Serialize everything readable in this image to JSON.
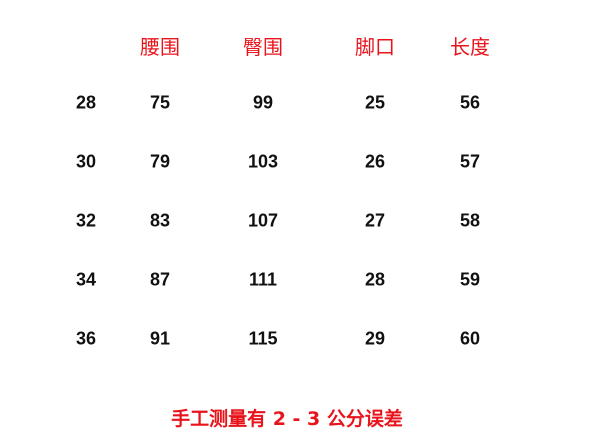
{
  "headers": [
    "",
    "腰围",
    "臀围",
    "脚口",
    "长度"
  ],
  "rows": [
    [
      "28",
      "75",
      "99",
      "25",
      "56"
    ],
    [
      "30",
      "79",
      "103",
      "26",
      "57"
    ],
    [
      "32",
      "83",
      "107",
      "27",
      "58"
    ],
    [
      "34",
      "87",
      "111",
      "28",
      "59"
    ],
    [
      "36",
      "91",
      "115",
      "29",
      "60"
    ]
  ],
  "footnote": "手工测量有 2 - 3 公分误差",
  "colors": {
    "header": "#e8141b",
    "values": "#111111",
    "footnote": "#e8141b"
  }
}
